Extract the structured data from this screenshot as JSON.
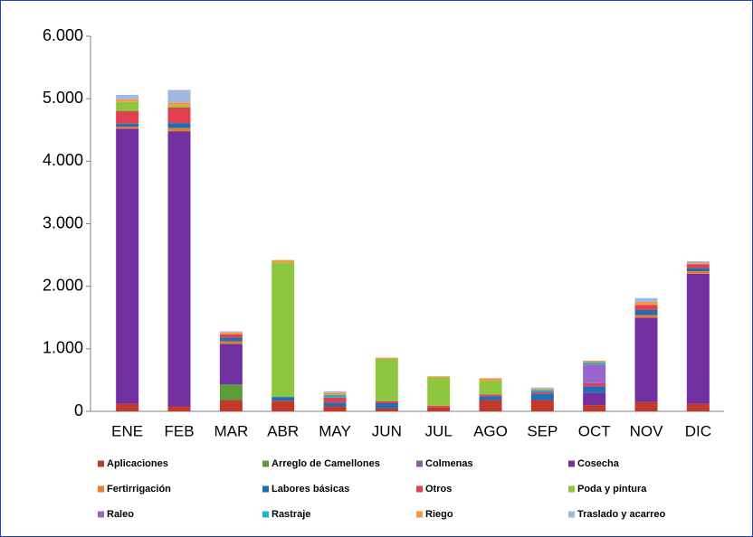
{
  "chart_data": {
    "type": "stacked_bar",
    "categories": [
      "ENE",
      "FEB",
      "MAR",
      "ABR",
      "MAY",
      "JUN",
      "JUL",
      "AGO",
      "SEP",
      "OCT",
      "NOV",
      "DIC"
    ],
    "ylim": [
      0,
      6000
    ],
    "yticks": [
      0,
      {
        "value": 1000,
        "label": "1.000"
      },
      {
        "value": 2000,
        "label": "2.000"
      },
      {
        "value": 3000,
        "label": "3.000"
      },
      {
        "value": 4000,
        "label": "4.000"
      },
      {
        "value": 5000,
        "label": "5.000"
      },
      {
        "value": 6000,
        "label": "6.000"
      }
    ],
    "series": [
      {
        "name": "Aplicaciones",
        "color": "#c0392b",
        "values": [
          120,
          80,
          180,
          170,
          80,
          50,
          60,
          180,
          180,
          100,
          150,
          120
        ]
      },
      {
        "name": "Arreglo de Camellones",
        "color": "#5b9b3a",
        "values": [
          0,
          0,
          250,
          0,
          0,
          0,
          0,
          0,
          0,
          0,
          0,
          0
        ]
      },
      {
        "name": "Colmenas",
        "color": "#8e5ea2",
        "values": [
          0,
          0,
          0,
          0,
          0,
          0,
          0,
          0,
          0,
          0,
          0,
          0
        ]
      },
      {
        "name": "Cosecha",
        "color": "#7030a0",
        "values": [
          4400,
          4400,
          650,
          0,
          0,
          0,
          0,
          0,
          0,
          200,
          1350,
          2080
        ]
      },
      {
        "name": "Fertirrigación",
        "color": "#f07a2a",
        "values": [
          30,
          50,
          40,
          0,
          0,
          0,
          0,
          0,
          0,
          0,
          40,
          40
        ]
      },
      {
        "name": "Labores básicas",
        "color": "#1f6fb5",
        "values": [
          50,
          80,
          60,
          60,
          60,
          80,
          0,
          60,
          100,
          100,
          80,
          50
        ]
      },
      {
        "name": "Otros",
        "color": "#e0404f",
        "values": [
          200,
          250,
          50,
          0,
          80,
          30,
          30,
          30,
          30,
          50,
          80,
          60
        ]
      },
      {
        "name": "Poda y pintura",
        "color": "#8dc63f",
        "values": [
          150,
          30,
          0,
          2150,
          0,
          680,
          450,
          220,
          0,
          0,
          0,
          0
        ]
      },
      {
        "name": "Raleo",
        "color": "#9966cc",
        "values": [
          0,
          0,
          0,
          0,
          0,
          0,
          0,
          0,
          0,
          300,
          0,
          0
        ]
      },
      {
        "name": "Rastraje",
        "color": "#17b5cf",
        "values": [
          0,
          0,
          0,
          0,
          40,
          0,
          0,
          0,
          30,
          30,
          0,
          0
        ]
      },
      {
        "name": "Riego",
        "color": "#f79646",
        "values": [
          40,
          50,
          30,
          40,
          40,
          20,
          20,
          40,
          20,
          30,
          50,
          20
        ]
      },
      {
        "name": "Traslado y acarreo",
        "color": "#a0b8e0",
        "values": [
          70,
          200,
          20,
          0,
          20,
          0,
          0,
          0,
          20,
          0,
          60,
          30
        ]
      }
    ]
  }
}
